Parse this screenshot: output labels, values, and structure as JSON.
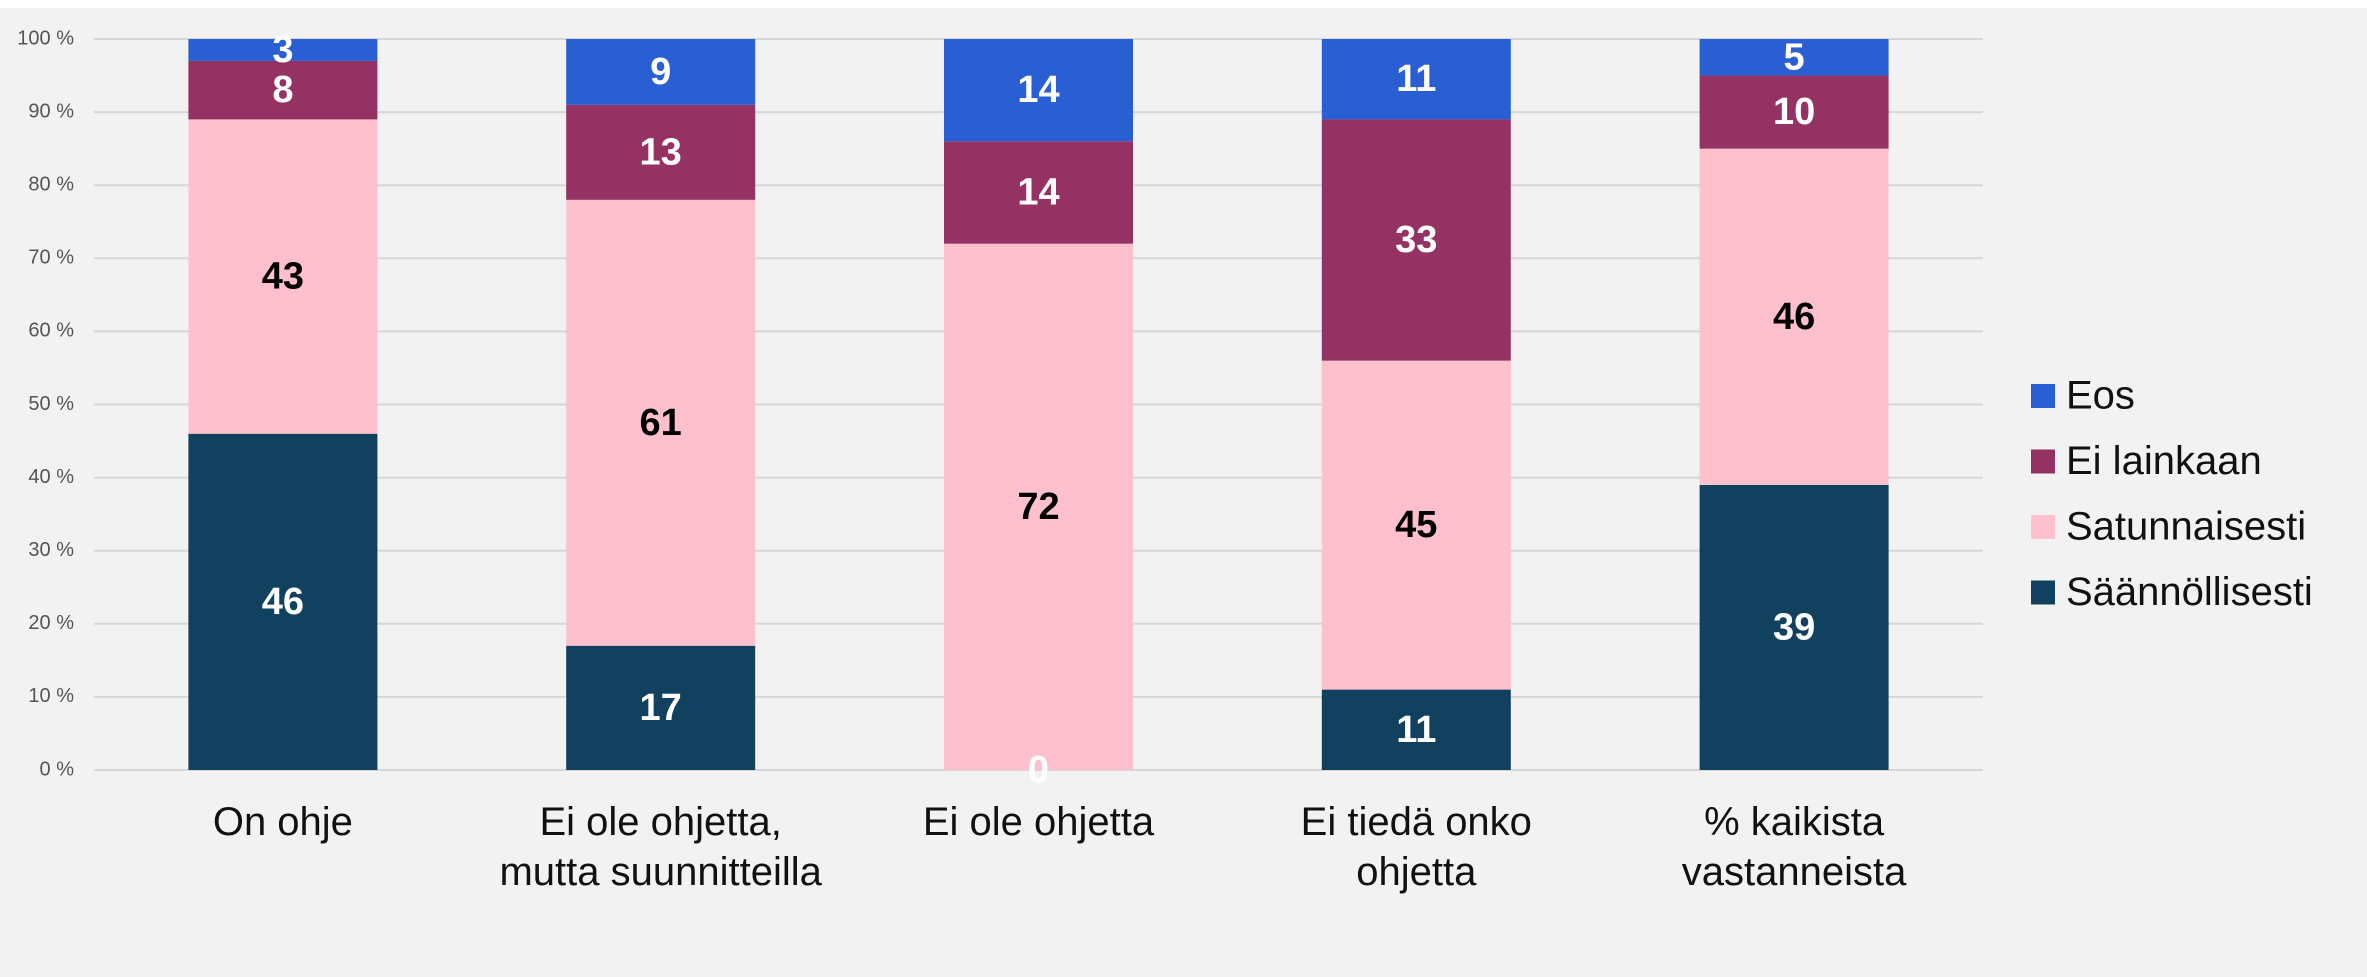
{
  "chart_data": {
    "type": "stacked_bar",
    "categories": [
      "On ohje",
      "Ei ole ohjetta, mutta suunnitteilla",
      "Ei ole ohjetta",
      "Ei tiedä onko ohjetta",
      "% kaikista vastanneista"
    ],
    "series": [
      {
        "name": "Säännöllisesti",
        "color": "#12405f",
        "label_color": "#ffffff",
        "values": [
          46,
          17,
          0,
          11,
          39
        ]
      },
      {
        "name": "Satunnaisesti",
        "color": "#ffc0cd",
        "label_color": "#000000",
        "values": [
          43,
          61,
          72,
          45,
          46
        ]
      },
      {
        "name": "Ei lainkaan",
        "color": "#933263",
        "label_color": "#ffffff",
        "values": [
          8,
          13,
          14,
          33,
          10
        ]
      },
      {
        "name": "Eos",
        "color": "#2a5fd4",
        "label_color": "#ffffff",
        "values": [
          3,
          9,
          14,
          11,
          5
        ]
      }
    ],
    "ylim": [
      0,
      100
    ],
    "yticks": [
      {
        "value": 0,
        "label": "0 %"
      },
      {
        "value": 10,
        "label": "10 %"
      },
      {
        "value": 20,
        "label": "20 %"
      },
      {
        "value": 30,
        "label": "30 %"
      },
      {
        "value": 40,
        "label": "40 %"
      },
      {
        "value": 50,
        "label": "50 %"
      },
      {
        "value": 60,
        "label": "60 %"
      },
      {
        "value": 70,
        "label": "70 %"
      },
      {
        "value": 80,
        "label": "80 %"
      },
      {
        "value": 90,
        "label": "90 %"
      },
      {
        "value": 100,
        "label": "100 %"
      }
    ],
    "grid": true,
    "legend": "right"
  }
}
